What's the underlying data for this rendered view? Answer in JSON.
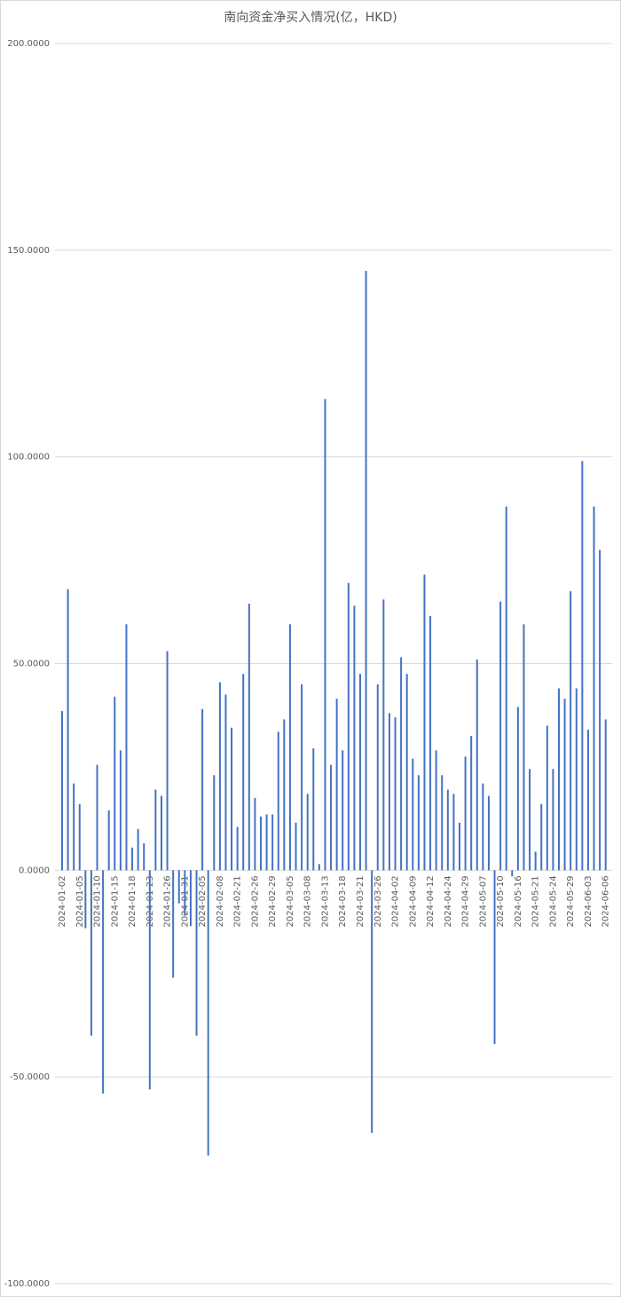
{
  "chart_data": {
    "type": "bar",
    "title": "南向资金净买入情况(亿，HKD)",
    "categories": [
      "2024-01-02",
      null,
      null,
      "2024-01-05",
      null,
      null,
      "2024-01-10",
      null,
      null,
      "2024-01-15",
      null,
      null,
      "2024-01-18",
      null,
      null,
      "2024-01-23",
      null,
      null,
      "2024-01-26",
      null,
      null,
      "2024-01-31",
      null,
      null,
      "2024-02-05",
      null,
      null,
      "2024-02-08",
      null,
      null,
      "2024-02-21",
      null,
      null,
      "2024-02-26",
      null,
      null,
      "2024-02-29",
      null,
      null,
      "2024-03-05",
      null,
      null,
      "2024-03-08",
      null,
      null,
      "2024-03-13",
      null,
      null,
      "2024-03-18",
      null,
      null,
      "2024-03-21",
      null,
      null,
      "2024-03-26",
      null,
      null,
      "2024-04-02",
      null,
      null,
      "2024-04-09",
      null,
      null,
      "2024-04-12",
      null,
      null,
      "2024-04-24",
      null,
      null,
      "2024-04-29",
      null,
      null,
      "2024-05-07",
      null,
      null,
      "2024-05-10",
      null,
      null,
      "2024-05-16",
      null,
      null,
      "2024-05-21",
      null,
      null,
      "2024-05-24",
      null,
      null,
      "2024-05-29",
      null,
      null,
      "2024-06-03",
      null,
      null,
      "2024-06-06"
    ],
    "values": [
      38.5,
      68,
      21,
      16,
      -14,
      -40,
      25.5,
      -54,
      14.5,
      42,
      29,
      59.5,
      5.5,
      10,
      6.5,
      -53,
      19.5,
      18,
      53,
      -26,
      -8,
      -11,
      -13.5,
      -40,
      39,
      -69,
      23,
      45.5,
      42.5,
      34.5,
      10.5,
      47.5,
      64.5,
      17.5,
      13,
      13.5,
      13.5,
      33.5,
      36.5,
      59.5,
      11.5,
      45,
      18.5,
      29.5,
      1.5,
      114,
      25.5,
      41.5,
      29,
      69.5,
      64,
      47.5,
      145,
      -63.5,
      45,
      65.5,
      38,
      37,
      51.5,
      47.5,
      27,
      23,
      71.5,
      61.5,
      29,
      23,
      19.5,
      18.5,
      11.5,
      27.5,
      32.5,
      51,
      21,
      18,
      -42,
      65,
      88,
      -1.5,
      39.5,
      59.5,
      24.5,
      4.5,
      16,
      35,
      24.5,
      44,
      41.5,
      67.5,
      44,
      99,
      34,
      88,
      77.5,
      36.5
    ],
    "color": "#4472c4",
    "ylim": [
      -100,
      200
    ],
    "yticks": [
      {
        "value": -100,
        "label": "-100.0000"
      },
      {
        "value": -50,
        "label": "-50.0000"
      },
      {
        "value": 0,
        "label": "0.0000"
      },
      {
        "value": 50,
        "label": "50.0000"
      },
      {
        "value": 100,
        "label": "100.0000"
      },
      {
        "value": 150,
        "label": "150.0000"
      },
      {
        "value": 200,
        "label": "200.0000"
      }
    ],
    "grid": true
  }
}
